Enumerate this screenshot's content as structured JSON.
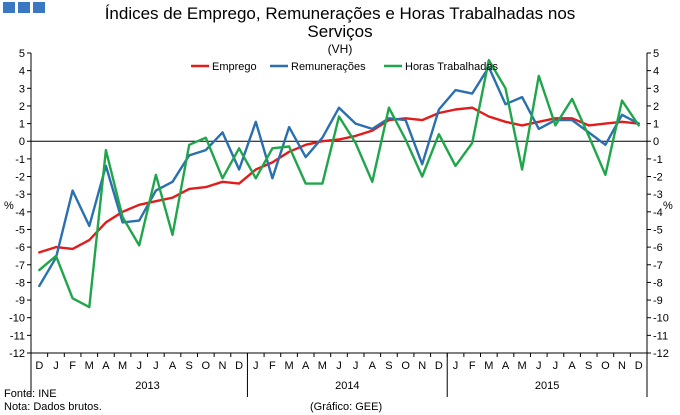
{
  "header": {
    "logo_color": "#3a78c2",
    "title_line1": "Índices de Emprego, Remunerações e Horas Trabalhadas nos",
    "title_line2": "Serviços",
    "unit_label": "(VH)"
  },
  "footer": {
    "source": "Fonte: INE",
    "note": "Nota: Dados brutos.",
    "credit": "(Gráfico: GEE)"
  },
  "chart_data": {
    "type": "line",
    "title": "Índices de Emprego, Remunerações e Horas Trabalhadas nos Serviços",
    "subtitle": "(VH)",
    "ylabel_left": "%",
    "ylabel_right": "%",
    "ylim": [
      -12,
      5
    ],
    "yticks": [
      5,
      4,
      3,
      2,
      1,
      0,
      -1,
      -2,
      -3,
      -4,
      -5,
      -6,
      -7,
      -8,
      -9,
      -10,
      -11,
      -12
    ],
    "legend_position": "top-center",
    "month_labels": [
      "D",
      "J",
      "F",
      "M",
      "A",
      "M",
      "J",
      "J",
      "A",
      "S",
      "O",
      "N",
      "D",
      "J",
      "F",
      "M",
      "A",
      "M",
      "J",
      "J",
      "A",
      "S",
      "O",
      "N",
      "D",
      "J",
      "F",
      "M",
      "A",
      "M",
      "J",
      "J",
      "A",
      "S",
      "O",
      "N",
      "D"
    ],
    "years": [
      {
        "label": "2013",
        "start": 1,
        "end": 12
      },
      {
        "label": "2014",
        "start": 13,
        "end": 24
      },
      {
        "label": "2015",
        "start": 25,
        "end": 36
      }
    ],
    "series": [
      {
        "name": "Emprego",
        "color": "#e21b1b",
        "values": [
          -6.3,
          -6.0,
          -6.1,
          -5.6,
          -4.6,
          -4.0,
          -3.6,
          -3.4,
          -3.2,
          -2.7,
          -2.6,
          -2.3,
          -2.4,
          -1.6,
          -1.2,
          -0.6,
          -0.2,
          0.0,
          0.1,
          0.3,
          0.6,
          1.2,
          1.3,
          1.2,
          1.6,
          1.8,
          1.9,
          1.4,
          1.1,
          0.9,
          1.1,
          1.3,
          1.3,
          0.9,
          1.0,
          1.1,
          1.0
        ]
      },
      {
        "name": "Remunerações",
        "color": "#2a6faf",
        "values": [
          -8.2,
          -6.6,
          -2.8,
          -4.8,
          -1.4,
          -4.6,
          -4.5,
          -2.8,
          -2.3,
          -0.8,
          -0.5,
          0.5,
          -1.6,
          1.1,
          -2.1,
          0.8,
          -0.9,
          0.2,
          1.9,
          1.0,
          0.7,
          1.3,
          1.2,
          -1.3,
          1.8,
          2.9,
          2.7,
          4.2,
          2.1,
          2.5,
          0.7,
          1.2,
          1.2,
          0.5,
          -0.2,
          1.5,
          1.0
        ]
      },
      {
        "name": "Horas Trabalhadas",
        "color": "#1fa64b",
        "values": [
          -7.3,
          -6.5,
          -8.9,
          -9.4,
          -0.5,
          -4.3,
          -5.9,
          -1.9,
          -5.3,
          -0.2,
          0.2,
          -2.1,
          -0.4,
          -2.1,
          -0.4,
          -0.3,
          -2.4,
          -2.4,
          1.4,
          -0.1,
          -2.3,
          1.9,
          0.1,
          -2.0,
          0.4,
          -1.4,
          -0.1,
          4.6,
          3.0,
          -1.6,
          3.7,
          0.9,
          2.4,
          0.3,
          -1.9,
          2.3,
          0.9
        ]
      }
    ]
  }
}
